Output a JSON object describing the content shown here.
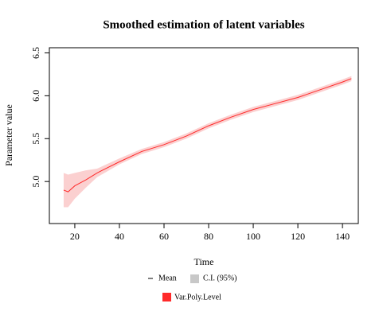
{
  "chart_data": {
    "type": "line",
    "title": "Smoothed estimation of latent variables",
    "xlabel": "Time",
    "ylabel": "Parameter value",
    "x": [
      15,
      17,
      20,
      25,
      30,
      40,
      50,
      60,
      70,
      80,
      90,
      100,
      110,
      120,
      130,
      140,
      144
    ],
    "series": [
      {
        "name": "Var.Poly.Level",
        "color": "#ff2a2a",
        "band_color": "#fbd0d0",
        "values": [
          4.9,
          4.88,
          4.95,
          5.02,
          5.1,
          5.23,
          5.35,
          5.43,
          5.53,
          5.65,
          5.75,
          5.84,
          5.91,
          5.98,
          6.07,
          6.16,
          6.2
        ],
        "lower": [
          4.7,
          4.7,
          4.8,
          4.93,
          5.05,
          5.2,
          5.32,
          5.4,
          5.5,
          5.62,
          5.72,
          5.81,
          5.88,
          5.95,
          6.04,
          6.13,
          6.17
        ],
        "upper": [
          5.1,
          5.08,
          5.1,
          5.13,
          5.15,
          5.27,
          5.38,
          5.46,
          5.56,
          5.68,
          5.78,
          5.87,
          5.94,
          6.01,
          6.1,
          6.19,
          6.23
        ]
      }
    ],
    "legend_items": [
      "Mean",
      "C.I. (95%)"
    ],
    "ci_color": "#c8c8c8",
    "xlim": [
      8.6,
      147.1
    ],
    "ylim": [
      4.51,
      6.56
    ],
    "xticks": [
      20,
      40,
      60,
      80,
      100,
      120,
      140
    ],
    "yticks": [
      {
        "value": 5.0,
        "label": "5.0"
      },
      5.5,
      {
        "value": 6.0,
        "label": "6.0"
      },
      6.5
    ]
  }
}
